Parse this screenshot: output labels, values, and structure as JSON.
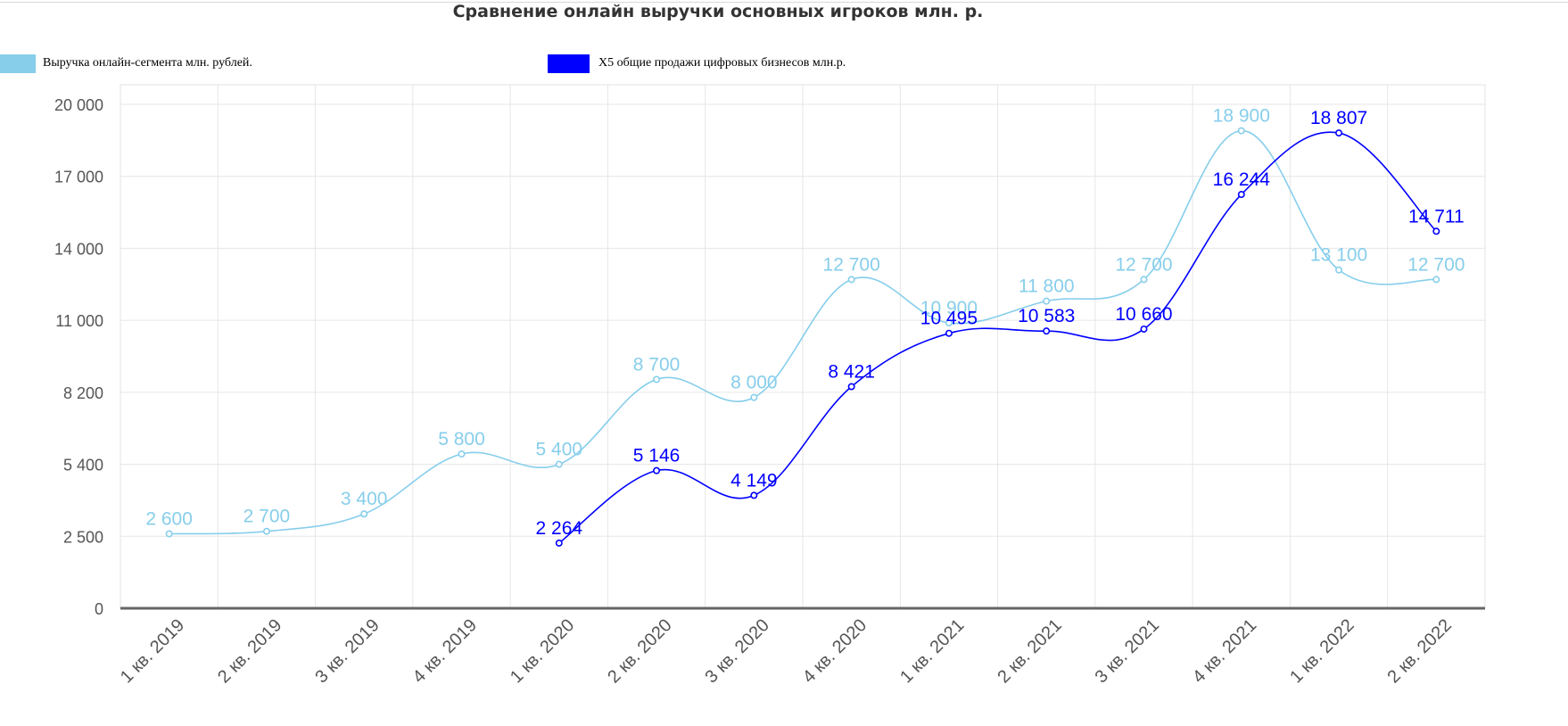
{
  "title": "Сравнение онлайн выручки основных игроков млн. р.",
  "legend": {
    "item1": {
      "label": "Выручка онлайн-сегмента млн. рублей.",
      "color": "#87ceeb"
    },
    "item2": {
      "label": "X5 общие продажи цифровых бизнесов млн.р.",
      "color": "#0000ff"
    }
  },
  "chart_data": {
    "type": "line",
    "title": "Сравнение онлайн выручки основных игроков млн. р.",
    "categories": [
      "1 кв. 2019",
      "2 кв. 2019",
      "3 кв. 2019",
      "4 кв. 2019",
      "1 кв. 2020",
      "2 кв. 2020",
      "3 кв. 2020",
      "4 кв. 2020",
      "1 кв. 2021",
      "2 кв. 2021",
      "3 кв. 2021",
      "4 кв. 2021",
      "1 кв. 2022",
      "2 кв. 2022"
    ],
    "y_ticks": [
      0,
      2500,
      5400,
      8200,
      11000,
      14000,
      17000,
      20000
    ],
    "y_tick_labels": [
      "0",
      "2 500",
      "5 400",
      "8 200",
      "11 000",
      "14 000",
      "17 000",
      "20 000"
    ],
    "grid": true,
    "legend_position": "top",
    "series": [
      {
        "name": "Выручка онлайн-сегмента млн. рублей.",
        "color": "#87ceeb",
        "values": [
          2600,
          2700,
          3400,
          5800,
          5400,
          8700,
          8000,
          12700,
          10900,
          11800,
          12700,
          18900,
          13100,
          12700
        ],
        "labels": [
          "2 600",
          "2 700",
          "3 400",
          "5 800",
          "5 400",
          "8 700",
          "8 000",
          "12 700",
          "10 900",
          "11 800",
          "12 700",
          "18 900",
          "13 100",
          "12 700"
        ]
      },
      {
        "name": "X5 общие продажи цифровых бизнесов млн.р.",
        "color": "#0000ff",
        "values": [
          null,
          null,
          null,
          null,
          2264,
          5146,
          4149,
          8421,
          10495,
          10583,
          10660,
          16244,
          18807,
          14711
        ],
        "labels": [
          null,
          null,
          null,
          null,
          "2 264",
          "5 146",
          "4 149",
          "8 421",
          "10 495",
          "10 583",
          "10 660",
          "16 244",
          "18 807",
          "14 711"
        ]
      }
    ]
  }
}
